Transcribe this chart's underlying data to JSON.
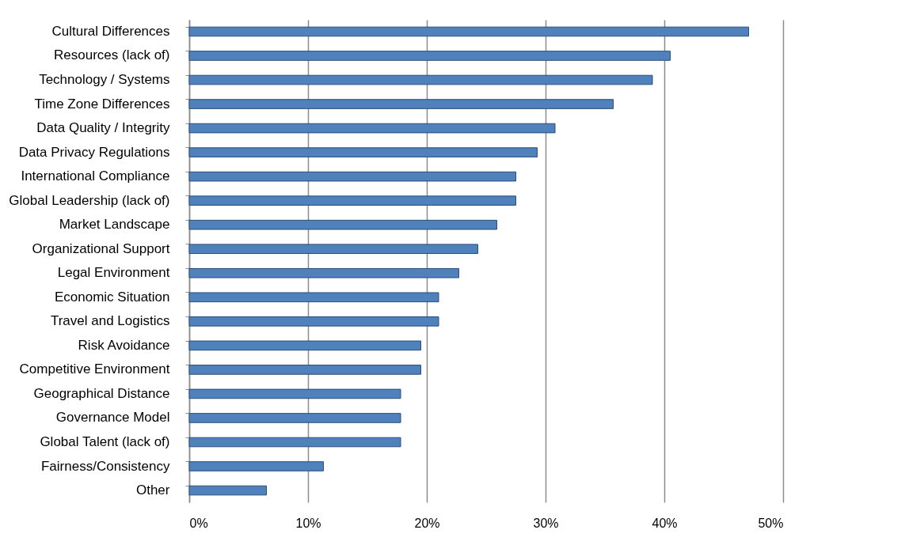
{
  "chart_data": {
    "type": "bar",
    "orientation": "horizontal",
    "categories": [
      "Cultural Differences",
      "Resources (lack of)",
      "Technology / Systems",
      "Time Zone Differences",
      "Data Quality / Integrity",
      "Data Privacy Regulations",
      "International Compliance",
      "Global Leadership (lack of)",
      "Market Landscape",
      "Organizational Support",
      "Legal Environment",
      "Economic Situation",
      "Travel and Logistics",
      "Risk Avoidance",
      "Competitive Environment",
      "Geographical Distance",
      "Governance Model",
      "Global Talent (lack of)",
      "Fairness/Consistency",
      "Other"
    ],
    "values": [
      47.1,
      40.5,
      39.0,
      35.7,
      30.8,
      29.3,
      27.5,
      27.5,
      25.9,
      24.3,
      22.7,
      21.0,
      21.0,
      19.5,
      19.5,
      17.8,
      17.8,
      17.8,
      11.3,
      6.5
    ],
    "color": "#4f81bd",
    "xlim": [
      0,
      50
    ],
    "xticks": [
      {
        "value": 0,
        "label": "0%"
      },
      {
        "value": 10,
        "label": "10%"
      },
      {
        "value": 20,
        "label": "20%"
      },
      {
        "value": 30,
        "label": "30%"
      },
      {
        "value": 40,
        "label": "40%"
      },
      {
        "value": 50,
        "label": "50%"
      }
    ],
    "grid": "x"
  }
}
